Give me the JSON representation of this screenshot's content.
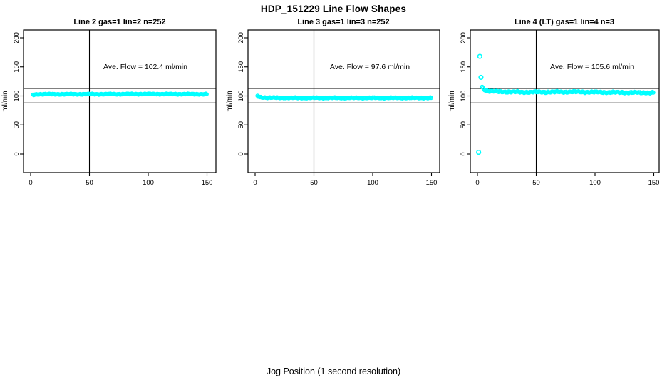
{
  "title": "HDP_151229  Line Flow Shapes",
  "xlabel": "Jog Position (1 second resolution)",
  "ylabel": "ml/min",
  "colors": {
    "points": "#00ffff",
    "axis": "#000000",
    "background": "#ffffff"
  },
  "chart_data": [
    {
      "type": "scatter",
      "title": "Line 2 gas=1 lin=2 n=252",
      "annotation": "Ave. Flow =  102.4  ml/min",
      "ave_flow_ml_min": 102.4,
      "n": 252,
      "xlabel": "Jog Position (1 second resolution)",
      "ylabel": "ml/min",
      "xlim": [
        0,
        155
      ],
      "ylim": [
        0,
        200
      ],
      "x_ticks": [
        0,
        50,
        100,
        150
      ],
      "y_ticks": [
        0,
        50,
        100,
        150,
        200
      ],
      "grid": false,
      "legend": "none",
      "marker": "open-circle",
      "vline_x": 50,
      "hlines_y": [
        113,
        88
      ],
      "band_keypoints": [
        [
          2,
          102
        ],
        [
          6,
          103
        ],
        [
          50,
          103
        ],
        [
          100,
          103.3
        ],
        [
          150,
          103
        ]
      ],
      "band_x_range": [
        2,
        150
      ],
      "jitter": 1.1,
      "outliers": []
    },
    {
      "type": "scatter",
      "title": "Line 3 gas=1 lin=3 n=252",
      "annotation": "Ave. Flow =  97.6  ml/min",
      "ave_flow_ml_min": 97.6,
      "n": 252,
      "xlabel": "Jog Position (1 second resolution)",
      "ylabel": "ml/min",
      "xlim": [
        0,
        155
      ],
      "ylim": [
        0,
        200
      ],
      "x_ticks": [
        0,
        50,
        100,
        150
      ],
      "y_ticks": [
        0,
        50,
        100,
        150,
        200
      ],
      "grid": false,
      "legend": "none",
      "marker": "open-circle",
      "vline_x": 50,
      "hlines_y": [
        113,
        88
      ],
      "band_keypoints": [
        [
          2,
          100
        ],
        [
          4,
          98
        ],
        [
          10,
          97
        ],
        [
          30,
          96.6
        ],
        [
          150,
          96.6
        ]
      ],
      "band_x_range": [
        2,
        150
      ],
      "jitter": 1.2,
      "outliers": []
    },
    {
      "type": "scatter",
      "title": "Line 4 (LT) gas=1 lin=4 n=3",
      "annotation": "Ave. Flow =  105.6  ml/min",
      "ave_flow_ml_min": 105.6,
      "n": 3,
      "xlabel": "Jog Position (1 second resolution)",
      "ylabel": "ml/min",
      "xlim": [
        0,
        155
      ],
      "ylim": [
        0,
        200
      ],
      "x_ticks": [
        0,
        50,
        100,
        150
      ],
      "y_ticks": [
        0,
        50,
        100,
        150,
        200
      ],
      "grid": false,
      "legend": "none",
      "marker": "open-circle",
      "vline_x": 50,
      "hlines_y": [
        113,
        88
      ],
      "band_keypoints": [
        [
          4,
          116
        ],
        [
          5,
          112
        ],
        [
          8,
          109
        ],
        [
          15,
          107.5
        ],
        [
          40,
          106.5
        ],
        [
          80,
          107
        ],
        [
          120,
          106
        ],
        [
          150,
          105.5
        ]
      ],
      "band_x_range": [
        4,
        150
      ],
      "jitter": 1.8,
      "outliers": [
        [
          1,
          3
        ],
        [
          2,
          168
        ],
        [
          3,
          132
        ]
      ]
    }
  ]
}
